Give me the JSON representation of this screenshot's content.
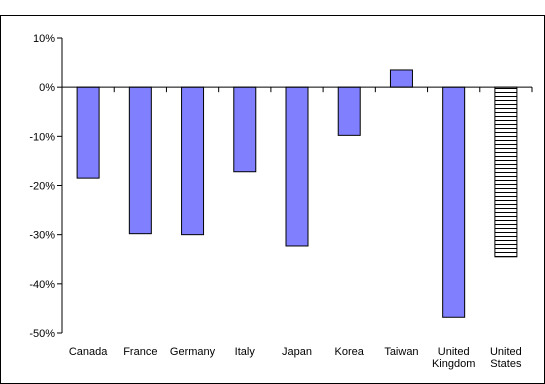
{
  "chart_data": {
    "type": "bar",
    "title": "",
    "xlabel": "",
    "ylabel": "",
    "ylim": [
      -50,
      10
    ],
    "yticks": [
      10,
      0,
      -10,
      -20,
      -30,
      -40,
      -50
    ],
    "ytick_labels": [
      "10%",
      "0%",
      "-10%",
      "-20%",
      "-30%",
      "-40%",
      "-50%"
    ],
    "categories": [
      [
        "Canada"
      ],
      [
        "France"
      ],
      [
        "Germany"
      ],
      [
        "Italy"
      ],
      [
        "Japan"
      ],
      [
        "Korea"
      ],
      [
        "Taiwan"
      ],
      [
        "United",
        "Kingdom"
      ],
      [
        "United",
        "States"
      ]
    ],
    "values": [
      -18.5,
      -29.8,
      -30.0,
      -17.2,
      -32.3,
      -9.8,
      3.5,
      -46.8,
      -34.5
    ],
    "bar_styles": [
      "solid",
      "solid",
      "solid",
      "solid",
      "solid",
      "solid",
      "solid",
      "solid",
      "hatched"
    ],
    "colors": {
      "bar": "#8080ff",
      "hatch_bg": "#ffffff",
      "hatch_line": "#000000",
      "axis": "#000000"
    },
    "grid": false,
    "legend": "none"
  }
}
